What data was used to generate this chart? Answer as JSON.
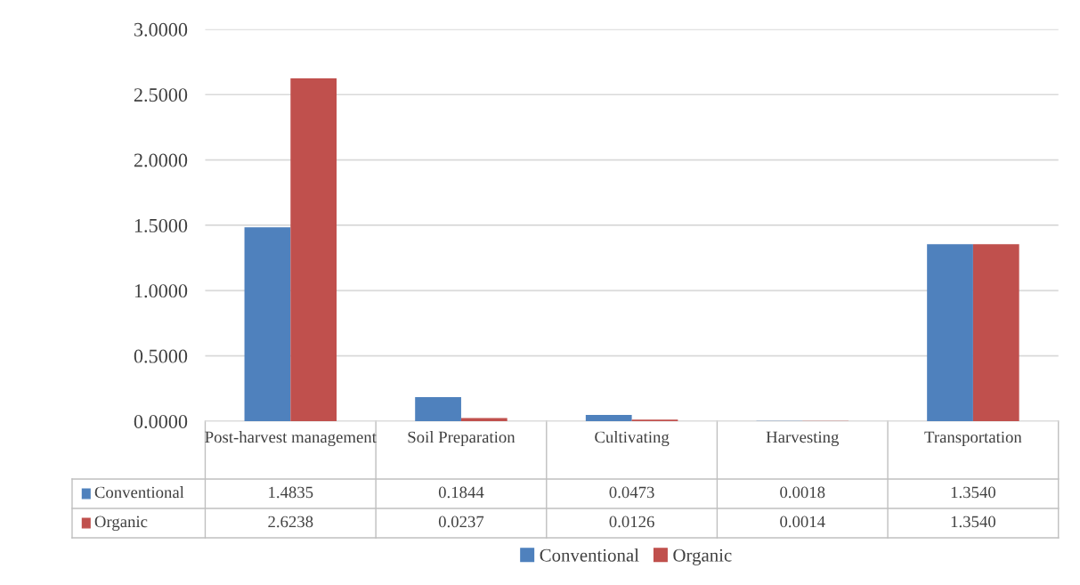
{
  "chart_data": {
    "type": "bar",
    "categories": [
      "Post-harvest management",
      "Soil Preparation",
      "Cultivating",
      "Harvesting",
      "Transportation"
    ],
    "series": [
      {
        "name": "Conventional",
        "color": "#4f81bd",
        "values": [
          1.4835,
          0.1844,
          0.0473,
          0.0018,
          1.354
        ],
        "value_labels": [
          "1.4835",
          "0.1844",
          "0.0473",
          "0.0018",
          "1.3540"
        ]
      },
      {
        "name": "Organic",
        "color": "#c0504d",
        "values": [
          2.6238,
          0.0237,
          0.0126,
          0.0014,
          1.354
        ],
        "value_labels": [
          "2.6238",
          "0.0237",
          "0.0126",
          "0.0014",
          "1.3540"
        ]
      }
    ],
    "ylim": [
      0,
      3
    ],
    "yticks": [
      {
        "value": 0,
        "label": "0.0000"
      },
      {
        "value": 0.5,
        "label": "0.5000"
      },
      {
        "value": 1,
        "label": "1.0000"
      },
      {
        "value": 1.5,
        "label": "1.5000"
      },
      {
        "value": 2,
        "label": "2.0000"
      },
      {
        "value": 2.5,
        "label": "2.5000"
      },
      {
        "value": 3,
        "label": "3.0000"
      }
    ],
    "grid": "y",
    "legend": "bottom"
  }
}
